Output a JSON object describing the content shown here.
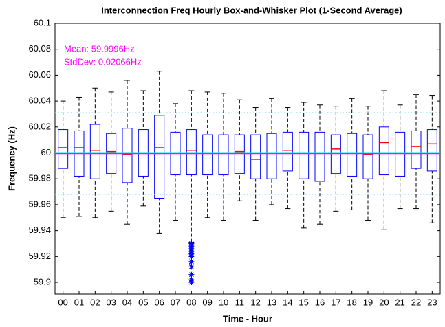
{
  "chart_data": {
    "type": "box",
    "title": "Interconnection Freq Hourly Box-and-Whisker Plot (1-Second Average)",
    "x_label": "Time - Hour",
    "y_label": "Frequency (Hz)",
    "annotations": [
      "Mean: 59.9996Hz",
      "StdDev: 0.02066Hz"
    ],
    "annotation_color": "#ff00ff",
    "categories": [
      "00",
      "01",
      "02",
      "03",
      "04",
      "05",
      "06",
      "07",
      "08",
      "09",
      "10",
      "11",
      "12",
      "13",
      "14",
      "15",
      "16",
      "17",
      "18",
      "19",
      "20",
      "21",
      "22",
      "23"
    ],
    "box_color": "#0000ff",
    "median_color": "#ff0000",
    "whisker_color": "#000000",
    "outlier_color": "#0000ff",
    "boxes": [
      {
        "low": 59.95,
        "q1": 59.988,
        "median": 60.004,
        "q3": 60.018,
        "high": 60.04
      },
      {
        "low": 59.951,
        "q1": 59.982,
        "median": 60.004,
        "q3": 60.017,
        "high": 60.043
      },
      {
        "low": 59.95,
        "q1": 59.98,
        "median": 60.002,
        "q3": 60.022,
        "high": 60.05
      },
      {
        "low": 59.955,
        "q1": 59.984,
        "median": 60.001,
        "q3": 60.015,
        "high": 60.047
      },
      {
        "low": 59.945,
        "q1": 59.977,
        "median": 59.999,
        "q3": 60.019,
        "high": 60.056
      },
      {
        "low": 59.959,
        "q1": 59.982,
        "median": 60.0,
        "q3": 60.018,
        "high": 60.048
      },
      {
        "low": 59.938,
        "q1": 59.965,
        "median": 60.004,
        "q3": 60.029,
        "high": 60.063
      },
      {
        "low": 59.948,
        "q1": 59.983,
        "median": 60.0,
        "q3": 60.016,
        "high": 60.038
      },
      {
        "low": 59.931,
        "q1": 59.983,
        "median": 60.002,
        "q3": 60.018,
        "high": 60.048,
        "outliers": [
          59.93,
          59.928,
          59.926,
          59.924,
          59.922,
          59.92,
          59.916,
          59.912,
          59.906,
          59.902,
          59.9
        ]
      },
      {
        "low": 59.95,
        "q1": 59.983,
        "median": 60.0,
        "q3": 60.014,
        "high": 60.047
      },
      {
        "low": 59.948,
        "q1": 59.983,
        "median": 60.0,
        "q3": 60.014,
        "high": 60.046
      },
      {
        "low": 59.963,
        "q1": 59.984,
        "median": 60.001,
        "q3": 60.014,
        "high": 60.041
      },
      {
        "low": 59.948,
        "q1": 59.98,
        "median": 59.995,
        "q3": 60.014,
        "high": 60.035
      },
      {
        "low": 59.96,
        "q1": 59.98,
        "median": 60.0,
        "q3": 60.015,
        "high": 60.042
      },
      {
        "low": 59.957,
        "q1": 59.986,
        "median": 60.002,
        "q3": 60.016,
        "high": 60.035
      },
      {
        "low": 59.942,
        "q1": 59.98,
        "median": 60.0,
        "q3": 60.016,
        "high": 60.039
      },
      {
        "low": 59.945,
        "q1": 59.978,
        "median": 60.0,
        "q3": 60.016,
        "high": 60.037
      },
      {
        "low": 59.955,
        "q1": 59.984,
        "median": 60.003,
        "q3": 60.014,
        "high": 60.036
      },
      {
        "low": 59.956,
        "q1": 59.982,
        "median": 60.0,
        "q3": 60.015,
        "high": 60.042
      },
      {
        "low": 59.948,
        "q1": 59.98,
        "median": 59.999,
        "q3": 60.014,
        "high": 60.036
      },
      {
        "low": 59.941,
        "q1": 59.983,
        "median": 60.008,
        "q3": 60.02,
        "high": 60.048
      },
      {
        "low": 59.957,
        "q1": 59.982,
        "median": 60.0,
        "q3": 60.016,
        "high": 60.037
      },
      {
        "low": 59.957,
        "q1": 59.988,
        "median": 60.005,
        "q3": 60.017,
        "high": 60.045
      },
      {
        "low": 59.946,
        "q1": 59.986,
        "median": 60.007,
        "q3": 60.018,
        "high": 60.044
      }
    ],
    "reference_lines": [
      {
        "value": 60.031,
        "color": "#7fe5ee",
        "style": "dotted"
      },
      {
        "value": 59.968,
        "color": "#7fe5ee",
        "style": "dotted"
      },
      {
        "value": 60.0,
        "color": "#00e5ee",
        "style": "solid"
      },
      {
        "value": 59.9996,
        "color": "#ff00ff",
        "style": "solid"
      }
    ],
    "ylim": [
      59.891,
      60.1
    ],
    "yticks": [
      59.9,
      59.92,
      59.94,
      59.96,
      59.98,
      60,
      60.02,
      60.04,
      60.06,
      60.08,
      60.1
    ]
  }
}
